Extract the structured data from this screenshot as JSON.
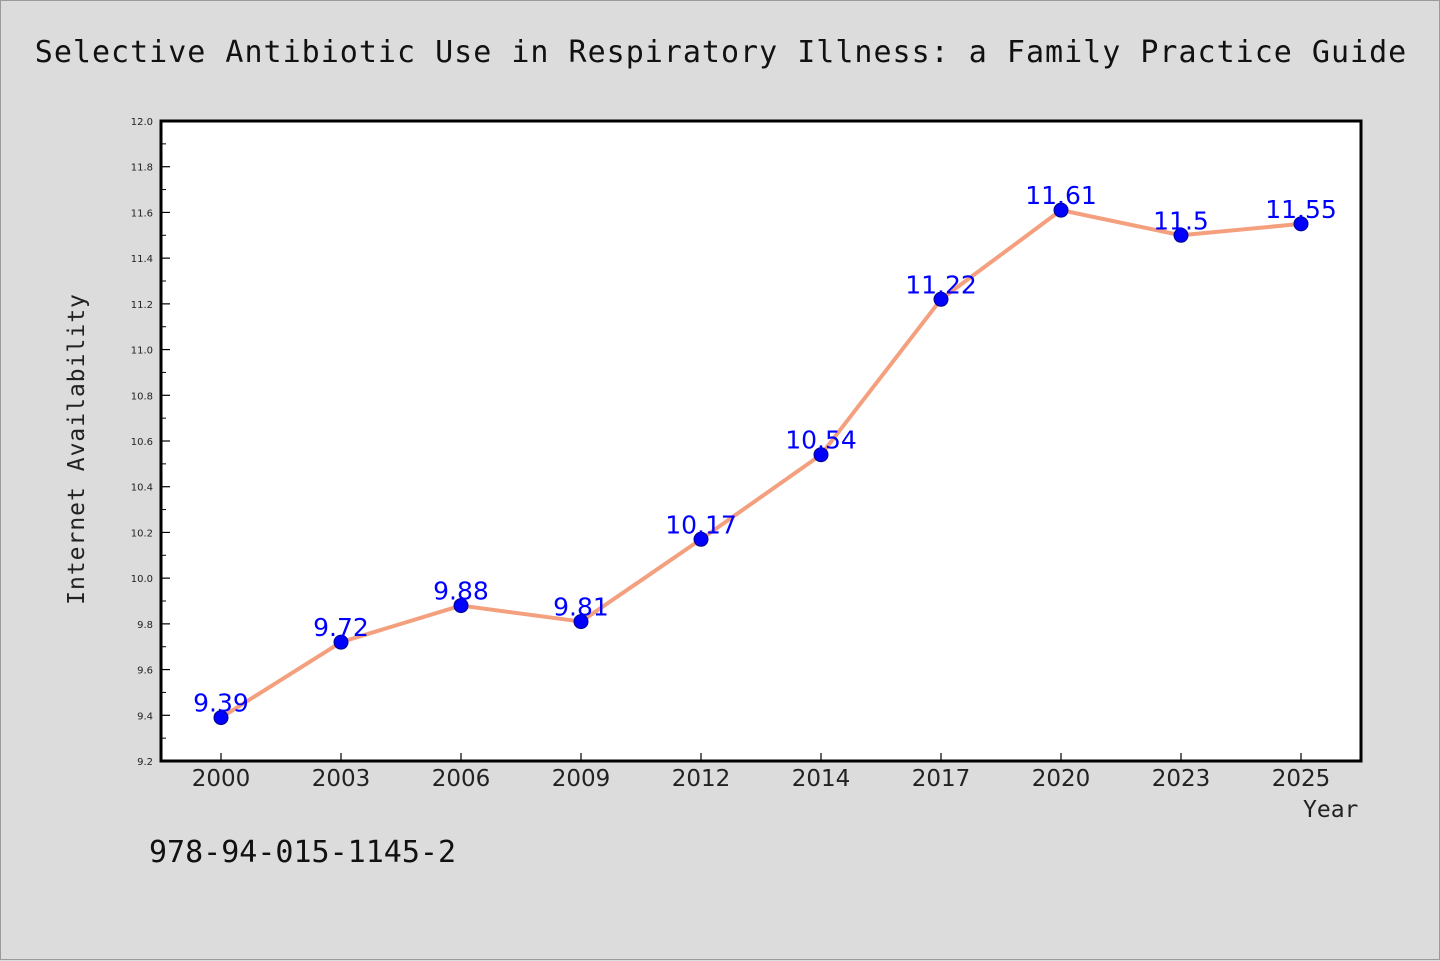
{
  "chart_data": {
    "type": "line",
    "title": "Selective Antibiotic Use in Respiratory Illness: a Family Practice Guide",
    "xlabel": "Year",
    "ylabel": "Internet Availability",
    "categories": [
      "2000",
      "2003",
      "2006",
      "2009",
      "2012",
      "2014",
      "2017",
      "2020",
      "2023",
      "2025"
    ],
    "series": [
      {
        "values": [
          9.39,
          9.72,
          9.88,
          9.81,
          10.17,
          10.54,
          11.22,
          11.61,
          11.5,
          11.55
        ]
      }
    ],
    "data_labels": [
      "9.39",
      "9.72",
      "9.88",
      "9.81",
      "10.17",
      "10.54",
      "11.22",
      "11.61",
      "11.5",
      "11.55"
    ],
    "ylim": [
      9.2,
      12.0
    ],
    "yticks": [
      "9.2",
      "9.4",
      "9.6",
      "9.8",
      "10.0",
      "10.2",
      "10.4",
      "10.6",
      "10.8",
      "11.0",
      "11.2",
      "11.4",
      "11.6",
      "11.8",
      "12.0"
    ],
    "grid": false,
    "legend": "none",
    "colors": {
      "line": "#f4a07e",
      "marker": "#0000ff",
      "data_label": "#0000ff",
      "background": "#dcdcdc",
      "plot_background": "#ffffff"
    }
  },
  "footer": {
    "isbn": "978-94-015-1145-2"
  }
}
